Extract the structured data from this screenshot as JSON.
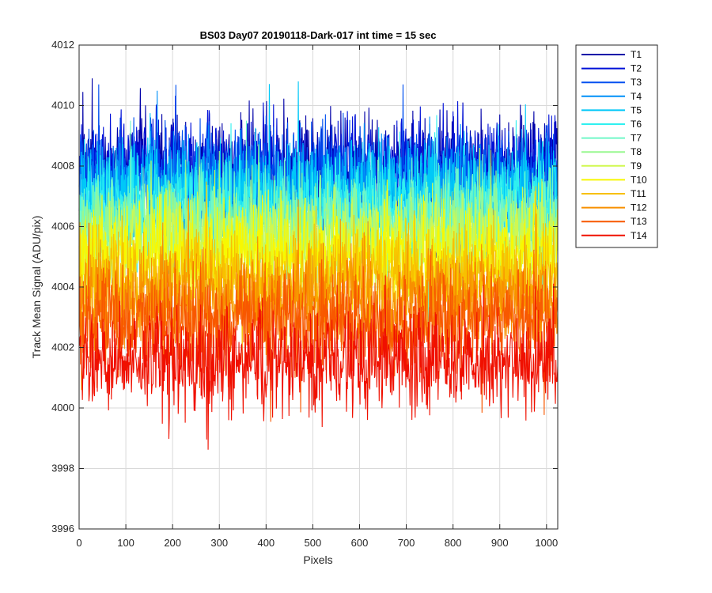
{
  "chart_data": {
    "type": "line",
    "title": "BS03 Day07 20190118-Dark-017 int time = 15 sec",
    "xlabel": "Pixels",
    "ylabel": "Track Mean Signal (ADU/pix)",
    "xlim": [
      0,
      1024
    ],
    "ylim": [
      3996,
      4012
    ],
    "xticks": [
      0,
      100,
      200,
      300,
      400,
      500,
      600,
      700,
      800,
      900,
      1000
    ],
    "yticks": [
      3996,
      3998,
      4000,
      4002,
      4004,
      4006,
      4008,
      4010,
      4012
    ],
    "grid": true,
    "legend_position": "outside-top-right",
    "noise_note_values_are_approximate": "each series fluctuates around the listed mean with the listed spread across pixels 0-1024",
    "series": [
      {
        "name": "T1",
        "color": "#0000A8",
        "mean": 4008.0,
        "spread": 1.2,
        "max": 4010.9
      },
      {
        "name": "T2",
        "color": "#0010D8",
        "mean": 4007.9,
        "spread": 1.2,
        "max": 4011.0
      },
      {
        "name": "T3",
        "color": "#0050F0",
        "mean": 4007.6,
        "spread": 1.2,
        "max": 4010.7
      },
      {
        "name": "T4",
        "color": "#0090F8",
        "mean": 4007.2,
        "spread": 1.2,
        "max": 4011.1
      },
      {
        "name": "T5",
        "color": "#00C8F8",
        "mean": 4007.0,
        "spread": 1.2,
        "max": 4010.8
      },
      {
        "name": "T6",
        "color": "#30F0F0",
        "mean": 4006.6,
        "spread": 1.2,
        "max": 4010.0
      },
      {
        "name": "T7",
        "color": "#70F8C8",
        "mean": 4006.2,
        "spread": 1.2,
        "max": 4009.5
      },
      {
        "name": "T8",
        "color": "#98F890",
        "mean": 4005.8,
        "spread": 1.2,
        "max": 4009.0
      },
      {
        "name": "T9",
        "color": "#D0F850",
        "mean": 4005.4,
        "spread": 1.2,
        "max": 4008.6
      },
      {
        "name": "T10",
        "color": "#F8F800",
        "mean": 4005.0,
        "spread": 1.2,
        "max": 4008.2
      },
      {
        "name": "T11",
        "color": "#F8C000",
        "mean": 4004.3,
        "spread": 1.2,
        "max": 4007.6
      },
      {
        "name": "T12",
        "color": "#F89000",
        "mean": 4003.6,
        "spread": 1.2,
        "max": 4007.0
      },
      {
        "name": "T13",
        "color": "#F85800",
        "mean": 4002.8,
        "spread": 1.2,
        "max": 4006.3
      },
      {
        "name": "T14",
        "color": "#F01000",
        "mean": 4001.6,
        "spread": 1.2,
        "min": 3997.8
      }
    ]
  }
}
